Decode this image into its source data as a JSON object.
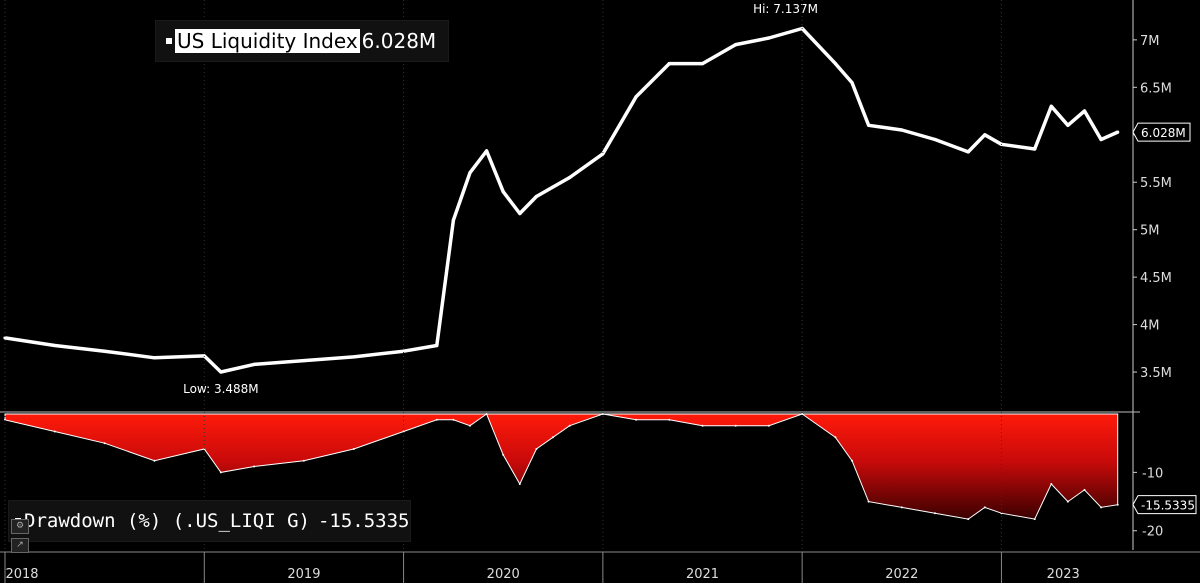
{
  "chart_data": [
    {
      "type": "line",
      "title": "US Liquidity Index",
      "series": [
        {
          "name": "US Liquidity Index",
          "last_value_label": "6.028M",
          "color": "#ffffff",
          "x": [
            "2018-01",
            "2018-04",
            "2018-07",
            "2018-10",
            "2019-01",
            "2019-02",
            "2019-04",
            "2019-07",
            "2019-10",
            "2020-01",
            "2020-03",
            "2020-04",
            "2020-05",
            "2020-06",
            "2020-07",
            "2020-08",
            "2020-09",
            "2020-10",
            "2020-11",
            "2021-01",
            "2021-03",
            "2021-05",
            "2021-07",
            "2021-09",
            "2021-11",
            "2022-01",
            "2022-03",
            "2022-04",
            "2022-05",
            "2022-07",
            "2022-09",
            "2022-11",
            "2022-12",
            "2023-01",
            "2023-03",
            "2023-04",
            "2023-05",
            "2023-06",
            "2023-07",
            "2023-08"
          ],
          "values": [
            3.86,
            3.78,
            3.72,
            3.65,
            3.67,
            3.5,
            3.58,
            3.62,
            3.66,
            3.72,
            3.78,
            5.1,
            5.6,
            5.83,
            5.4,
            5.17,
            5.35,
            5.45,
            5.55,
            5.8,
            6.4,
            6.75,
            6.75,
            6.95,
            7.02,
            7.12,
            6.75,
            6.55,
            6.1,
            6.05,
            5.95,
            5.82,
            6.0,
            5.9,
            5.85,
            6.3,
            6.1,
            6.25,
            5.95,
            6.028
          ]
        }
      ],
      "annotations": [
        {
          "text": "Hi: 7.137M",
          "x": "2021-12",
          "y": 7.137
        },
        {
          "text": "Low: 3.488M",
          "x": "2019-02",
          "y": 3.488
        }
      ],
      "x_ticks": [
        "2018",
        "2019",
        "2020",
        "2021",
        "2022",
        "2023"
      ],
      "y_ticks": [
        "3.5M",
        "4M",
        "4.5M",
        "5M",
        "5.5M",
        "6M",
        "6.5M",
        "7M"
      ],
      "y_tick_values": [
        3.5,
        4.0,
        4.5,
        5.0,
        5.5,
        6.0,
        6.5,
        7.0
      ],
      "ylim": [
        3.1,
        7.42
      ],
      "axis_position": "right",
      "grid": false
    },
    {
      "type": "area",
      "title": "Drawdown (%) (.US_LIQI G)",
      "series": [
        {
          "name": "Drawdown (%) (.US_LIQI G)",
          "last_value_label": "-15.5335",
          "color": "#ff0000",
          "x": [
            "2018-01",
            "2018-04",
            "2018-07",
            "2018-10",
            "2019-01",
            "2019-02",
            "2019-04",
            "2019-07",
            "2019-10",
            "2020-01",
            "2020-03",
            "2020-04",
            "2020-05",
            "2020-06",
            "2020-07",
            "2020-08",
            "2020-09",
            "2020-10",
            "2020-11",
            "2021-01",
            "2021-03",
            "2021-05",
            "2021-07",
            "2021-09",
            "2021-11",
            "2022-01",
            "2022-03",
            "2022-04",
            "2022-05",
            "2022-07",
            "2022-09",
            "2022-11",
            "2022-12",
            "2023-01",
            "2023-03",
            "2023-04",
            "2023-05",
            "2023-06",
            "2023-07",
            "2023-08"
          ],
          "values": [
            -1,
            -3,
            -5,
            -8,
            -6,
            -10,
            -9,
            -8,
            -6,
            -3,
            -1,
            -1,
            -2,
            0,
            -7,
            -12,
            -6,
            -4,
            -2,
            0,
            -1,
            -1,
            -2,
            -2,
            -2,
            0,
            -4,
            -8,
            -15,
            -16,
            -17,
            -18,
            -16,
            -17,
            -18,
            -12,
            -15,
            -13,
            -16,
            -15.5335
          ]
        }
      ],
      "y_ticks": [
        "-10",
        "-20"
      ],
      "y_tick_values": [
        -10,
        -20
      ],
      "ylim": [
        -23.3,
        0
      ],
      "axis_position": "right",
      "grid": false
    }
  ]
}
